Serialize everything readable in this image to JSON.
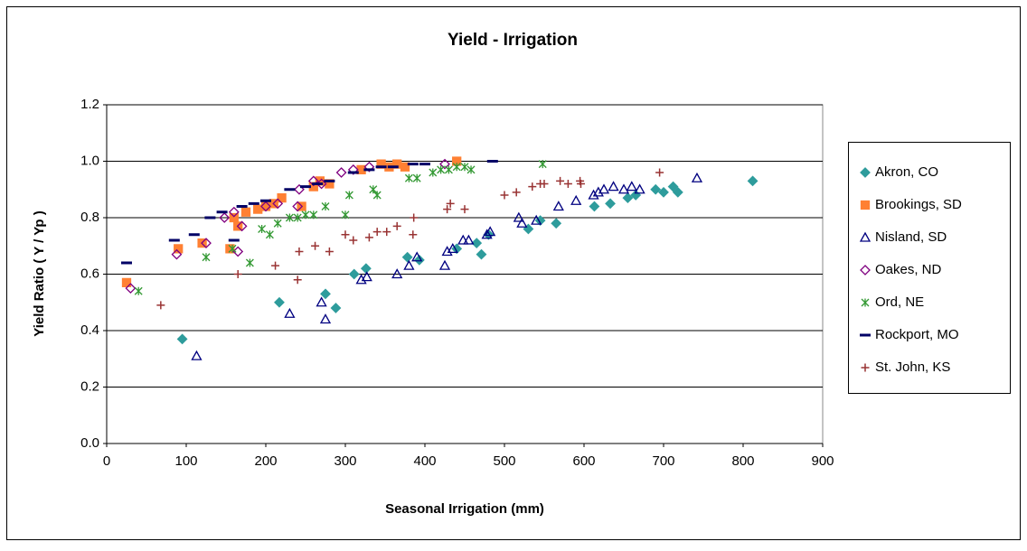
{
  "chart_data": {
    "type": "scatter",
    "title": "Yield - Irrigation",
    "x_label": "Seasonal Irrigation (mm)",
    "y_label": "Yield Ratio ( Y / Yp )",
    "xlim": [
      0,
      900
    ],
    "xticks": [
      0,
      100,
      200,
      300,
      400,
      500,
      600,
      700,
      800,
      900
    ],
    "ylim": [
      0,
      1.2
    ],
    "yticks": [
      {
        "value": 0,
        "label": "0.0"
      },
      {
        "value": 0.2,
        "label": "0.2"
      },
      {
        "value": 0.4,
        "label": "0.4"
      },
      {
        "value": 0.6,
        "label": "0.6"
      },
      {
        "value": 0.8,
        "label": "0.8"
      },
      {
        "value": 1,
        "label": "1.0"
      },
      {
        "value": 1.2,
        "label": "1.2"
      }
    ],
    "grid": true,
    "legend": "right",
    "series": [
      {
        "name": "Akron, CO",
        "color": "#2e9c9c",
        "marker": "diamond",
        "x": [
          95,
          217,
          275,
          288,
          311,
          326,
          378,
          393,
          440,
          465,
          471,
          480,
          530,
          545,
          565,
          613,
          633,
          655,
          665,
          690,
          700,
          712,
          718,
          812
        ],
        "values": [
          0.37,
          0.5,
          0.53,
          0.48,
          0.6,
          0.62,
          0.66,
          0.65,
          0.69,
          0.71,
          0.67,
          0.74,
          0.76,
          0.79,
          0.78,
          0.84,
          0.85,
          0.87,
          0.88,
          0.9,
          0.89,
          0.91,
          0.89,
          0.93
        ]
      },
      {
        "name": "Brookings, SD",
        "color": "#ff8033",
        "marker": "square",
        "x": [
          25,
          90,
          120,
          155,
          160,
          165,
          175,
          190,
          200,
          210,
          220,
          245,
          260,
          268,
          280,
          320,
          345,
          355,
          365,
          375,
          440
        ],
        "values": [
          0.57,
          0.69,
          0.71,
          0.69,
          0.8,
          0.77,
          0.82,
          0.83,
          0.84,
          0.85,
          0.87,
          0.84,
          0.91,
          0.93,
          0.92,
          0.97,
          0.99,
          0.98,
          0.99,
          0.98,
          1.0
        ]
      },
      {
        "name": "Nisland, SD",
        "color": "#000080",
        "marker": "triangle",
        "x": [
          113,
          230,
          270,
          275,
          320,
          327,
          365,
          380,
          390,
          425,
          428,
          435,
          448,
          455,
          478,
          482,
          518,
          522,
          540,
          568,
          590,
          612,
          618,
          625,
          637,
          650,
          660,
          670,
          742
        ],
        "values": [
          0.31,
          0.46,
          0.5,
          0.44,
          0.58,
          0.59,
          0.6,
          0.63,
          0.66,
          0.63,
          0.68,
          0.69,
          0.72,
          0.72,
          0.74,
          0.75,
          0.8,
          0.78,
          0.79,
          0.84,
          0.86,
          0.88,
          0.89,
          0.9,
          0.91,
          0.9,
          0.91,
          0.9,
          0.94
        ]
      },
      {
        "name": "Oakes, ND",
        "color": "#800080",
        "marker": "open-diamond",
        "x": [
          30,
          88,
          125,
          148,
          160,
          165,
          170,
          200,
          215,
          240,
          242,
          260,
          270,
          295,
          310,
          330,
          425
        ],
        "values": [
          0.55,
          0.67,
          0.71,
          0.8,
          0.82,
          0.68,
          0.77,
          0.84,
          0.85,
          0.84,
          0.9,
          0.93,
          0.92,
          0.96,
          0.97,
          0.98,
          0.99
        ]
      },
      {
        "name": "Ord, NE",
        "color": "#339933",
        "marker": "asterisk",
        "x": [
          40,
          125,
          158,
          180,
          195,
          205,
          215,
          230,
          240,
          250,
          260,
          275,
          300,
          305,
          335,
          340,
          380,
          390,
          410,
          420,
          430,
          440,
          450,
          458,
          548
        ],
        "values": [
          0.54,
          0.66,
          0.69,
          0.64,
          0.76,
          0.74,
          0.78,
          0.8,
          0.8,
          0.81,
          0.81,
          0.84,
          0.81,
          0.88,
          0.9,
          0.88,
          0.94,
          0.94,
          0.96,
          0.97,
          0.97,
          0.98,
          0.98,
          0.97,
          0.99
        ]
      },
      {
        "name": "Rockport, MO",
        "color": "#000066",
        "marker": "dash",
        "x": [
          25,
          85,
          110,
          130,
          145,
          160,
          170,
          185,
          200,
          230,
          250,
          265,
          280,
          310,
          330,
          345,
          360,
          385,
          400,
          485
        ],
        "values": [
          0.64,
          0.72,
          0.74,
          0.8,
          0.82,
          0.72,
          0.84,
          0.85,
          0.86,
          0.9,
          0.91,
          0.92,
          0.93,
          0.96,
          0.97,
          0.98,
          0.98,
          0.99,
          0.99,
          1.0
        ]
      },
      {
        "name": "St. John, KS",
        "color": "#993333",
        "marker": "plus",
        "x": [
          68,
          165,
          212,
          240,
          242,
          262,
          280,
          300,
          310,
          330,
          340,
          352,
          365,
          385,
          386,
          428,
          432,
          450,
          500,
          515,
          535,
          545,
          550,
          570,
          580,
          595,
          596,
          695
        ],
        "values": [
          0.49,
          0.6,
          0.63,
          0.58,
          0.68,
          0.7,
          0.68,
          0.74,
          0.72,
          0.73,
          0.75,
          0.75,
          0.77,
          0.74,
          0.8,
          0.83,
          0.85,
          0.83,
          0.88,
          0.89,
          0.91,
          0.92,
          0.92,
          0.93,
          0.92,
          0.93,
          0.92,
          0.96
        ]
      }
    ]
  }
}
